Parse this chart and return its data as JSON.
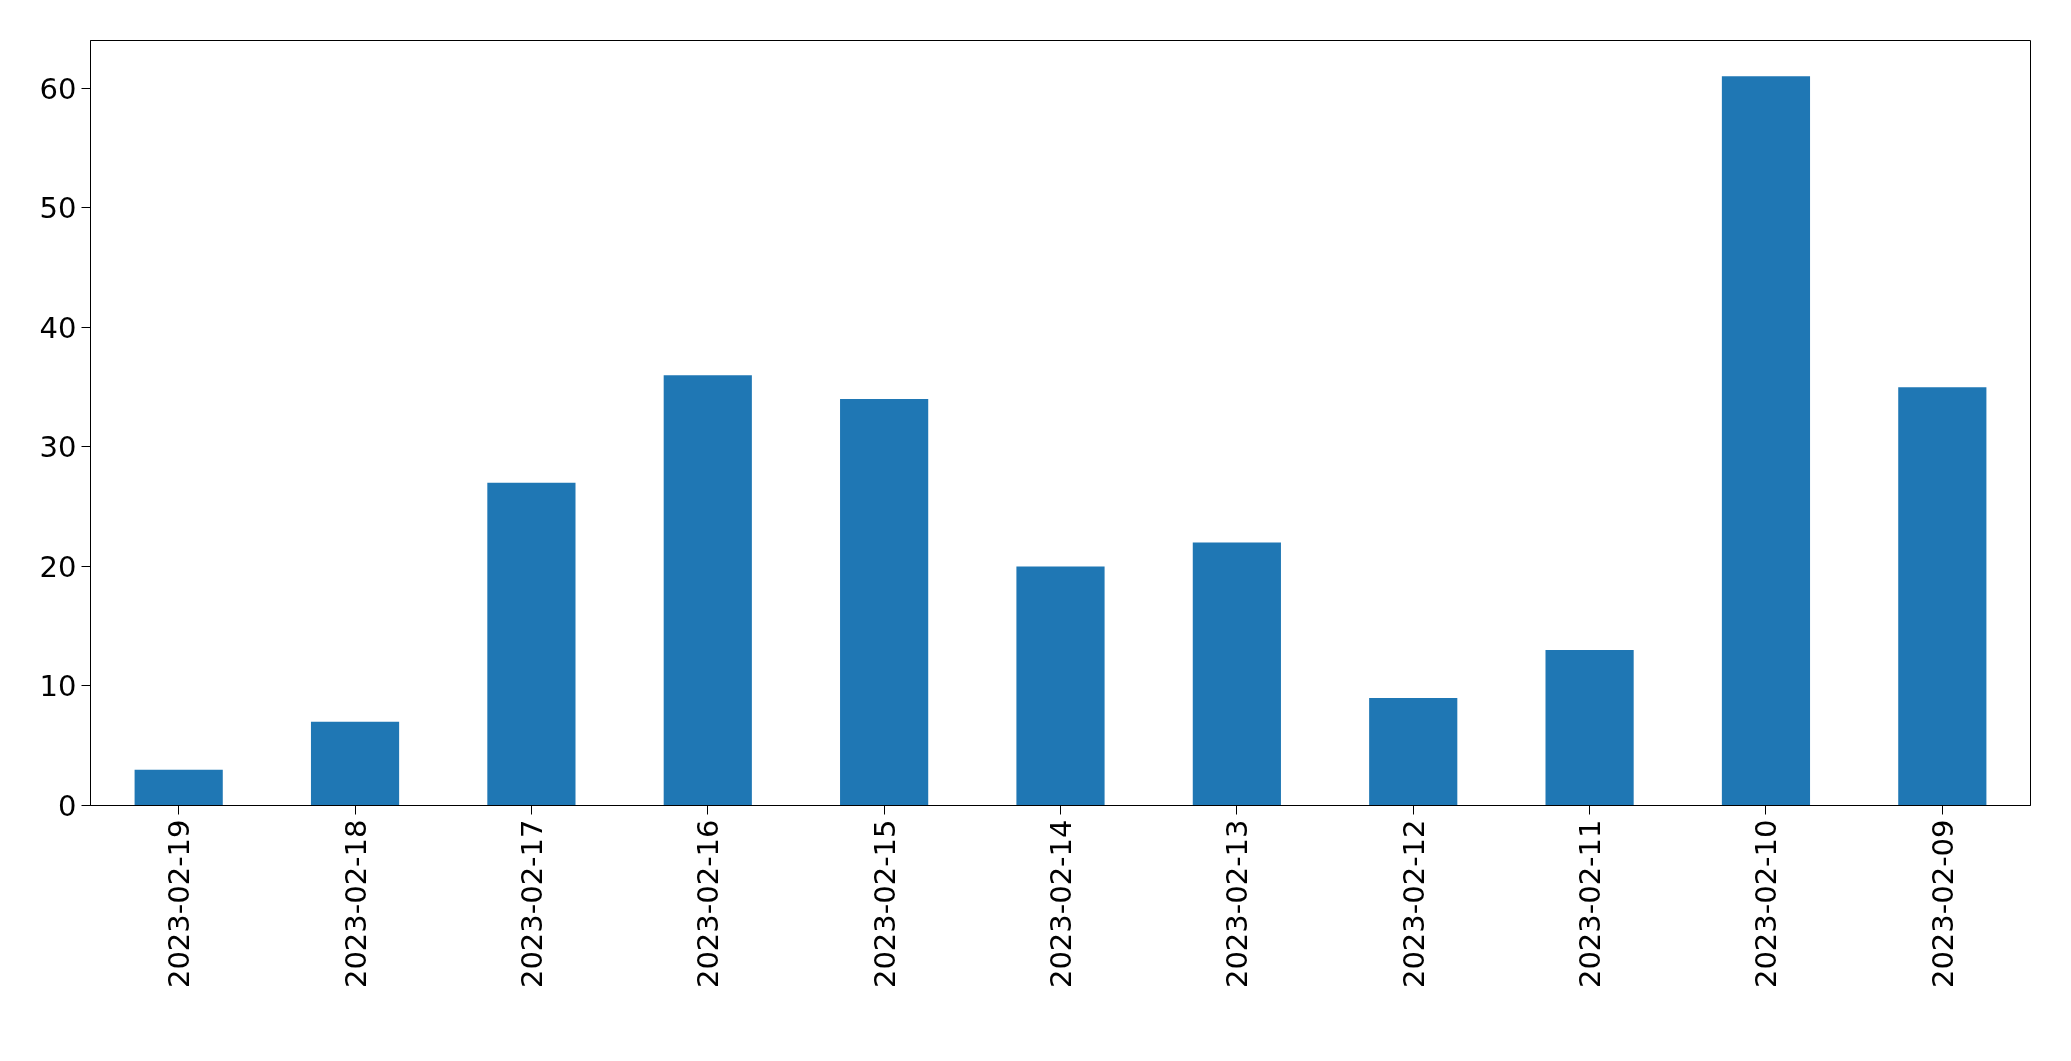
{
  "chart_data": {
    "type": "bar",
    "categories": [
      "2023-02-19",
      "2023-02-18",
      "2023-02-17",
      "2023-02-16",
      "2023-02-15",
      "2023-02-14",
      "2023-02-13",
      "2023-02-12",
      "2023-02-11",
      "2023-02-10",
      "2023-02-09"
    ],
    "values": [
      3,
      7,
      27,
      36,
      34,
      20,
      22,
      9,
      13,
      61,
      35
    ],
    "color": "#1f77b4",
    "ylim": [
      0,
      64
    ],
    "yticks": [
      0,
      10,
      20,
      30,
      40,
      50,
      60
    ],
    "grid": false
  }
}
